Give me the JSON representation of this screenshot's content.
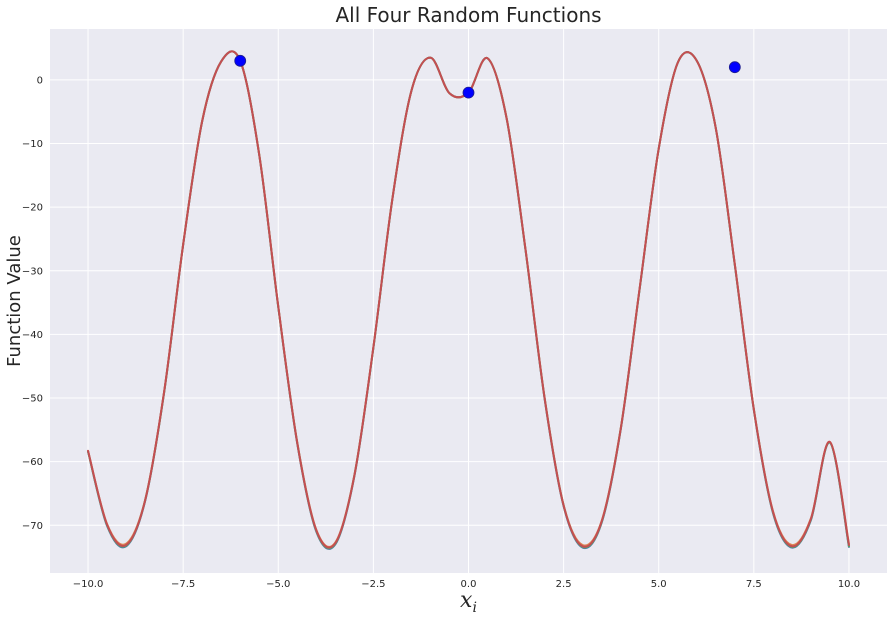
{
  "chart_data": {
    "type": "line",
    "title": "All Four Random Functions",
    "xlabel": "x",
    "xlabel_subscript": "i",
    "ylabel": "Function Value",
    "xlim": [
      -11.0,
      11.0
    ],
    "ylim": [
      -77.5,
      8.0
    ],
    "x_ticks": [
      -10.0,
      -7.5,
      -5.0,
      -2.5,
      0.0,
      2.5,
      5.0,
      7.5,
      10.0
    ],
    "x_tick_labels": [
      "−10.0",
      "−7.5",
      "−5.0",
      "−2.5",
      "0.0",
      "2.5",
      "5.0",
      "7.5",
      "10.0"
    ],
    "y_ticks": [
      -70,
      -60,
      -50,
      -40,
      -30,
      -20,
      -10,
      0
    ],
    "y_tick_labels": [
      "−70",
      "−60",
      "−50",
      "−40",
      "−30",
      "−20",
      "−10",
      "0"
    ],
    "grid": true,
    "background_color": "#eaeaf2",
    "series": [
      {
        "color": "#4c72b0",
        "x": [
          -10.0,
          -9.5,
          -9.0,
          -8.5,
          -8.0,
          -7.5,
          -7.0,
          -6.5,
          -6.0,
          -5.5,
          -5.0,
          -4.5,
          -4.0,
          -3.5,
          -3.0,
          -2.5,
          -2.0,
          -1.5,
          -1.0,
          -0.5,
          0.0,
          0.5,
          1.0,
          1.5,
          2.0,
          2.5,
          3.0,
          3.5,
          4.0,
          4.5,
          5.0,
          5.5,
          6.0,
          6.5,
          7.0,
          7.5,
          8.0,
          8.5,
          9.0,
          9.5,
          10.0
        ],
        "y": [
          -58.4,
          -70.1,
          -73.3,
          -66.2,
          -49.1,
          -25.9,
          -6.5,
          2.9,
          3.0,
          -11.8,
          -35.7,
          -57.2,
          -71.0,
          -73.0,
          -62.3,
          -42.1,
          -18.7,
          -1.7,
          3.5,
          -2.1,
          -2.0,
          3.4,
          -6.0,
          -26.8,
          -50.1,
          -67.0,
          -73.5,
          -69.6,
          -55.0,
          -32.8,
          -10.8,
          2.7,
          3.0,
          -7.6,
          -29.1,
          -51.9,
          -68.0,
          -73.5,
          -69.2,
          -57.0,
          -73.4
        ]
      },
      {
        "color": "#dd8452",
        "x": [
          -10.0,
          -9.5,
          -9.0,
          -8.5,
          -8.0,
          -7.5,
          -7.0,
          -6.5,
          -6.0,
          -5.5,
          -5.0,
          -4.5,
          -4.0,
          -3.5,
          -3.0,
          -2.5,
          -2.0,
          -1.5,
          -1.0,
          -0.5,
          0.0,
          0.5,
          1.0,
          1.5,
          2.0,
          2.5,
          3.0,
          3.5,
          4.0,
          4.5,
          5.0,
          5.5,
          6.0,
          6.5,
          7.0,
          7.5,
          8.0,
          8.5,
          9.0,
          9.5,
          10.0
        ],
        "y": [
          -58.3,
          -69.8,
          -72.9,
          -66.0,
          -49.0,
          -25.8,
          -6.4,
          2.9,
          3.0,
          -11.7,
          -35.6,
          -57.0,
          -70.7,
          -72.7,
          -62.1,
          -42.0,
          -18.6,
          -1.7,
          3.5,
          -2.1,
          -2.0,
          3.4,
          -5.9,
          -26.7,
          -49.9,
          -66.8,
          -73.1,
          -69.3,
          -54.8,
          -32.7,
          -10.8,
          2.7,
          3.0,
          -7.6,
          -29.0,
          -51.7,
          -67.7,
          -73.1,
          -68.9,
          -56.9,
          -72.9
        ]
      },
      {
        "color": "#55a868",
        "x": [
          -10.0,
          -9.5,
          -9.0,
          -8.5,
          -8.0,
          -7.5,
          -7.0,
          -6.5,
          -6.0,
          -5.5,
          -5.0,
          -4.5,
          -4.0,
          -3.5,
          -3.0,
          -2.5,
          -2.0,
          -1.5,
          -1.0,
          -0.5,
          0.0,
          0.5,
          1.0,
          1.5,
          2.0,
          2.5,
          3.0,
          3.5,
          4.0,
          4.5,
          5.0,
          5.5,
          6.0,
          6.5,
          7.0,
          7.5,
          8.0,
          8.5,
          9.0,
          9.5,
          10.0
        ],
        "y": [
          -58.4,
          -70.0,
          -73.2,
          -66.1,
          -49.1,
          -25.9,
          -6.5,
          2.9,
          3.0,
          -11.8,
          -35.7,
          -57.1,
          -70.9,
          -72.9,
          -62.2,
          -42.1,
          -18.7,
          -1.7,
          3.5,
          -2.1,
          -2.0,
          3.4,
          -6.0,
          -26.8,
          -50.0,
          -66.9,
          -73.4,
          -69.5,
          -54.9,
          -32.8,
          -10.8,
          2.7,
          3.0,
          -7.6,
          -29.1,
          -51.8,
          -67.9,
          -73.4,
          -69.1,
          -57.0,
          -73.3
        ]
      },
      {
        "color": "#c44e52",
        "x": [
          -10.0,
          -9.5,
          -9.0,
          -8.5,
          -8.0,
          -7.5,
          -7.0,
          -6.5,
          -6.0,
          -5.5,
          -5.0,
          -4.5,
          -4.0,
          -3.5,
          -3.0,
          -2.5,
          -2.0,
          -1.5,
          -1.0,
          -0.5,
          0.0,
          0.5,
          1.0,
          1.5,
          2.0,
          2.5,
          3.0,
          3.5,
          4.0,
          4.5,
          5.0,
          5.5,
          6.0,
          6.5,
          7.0,
          7.5,
          8.0,
          8.5,
          9.0,
          9.5,
          10.0
        ],
        "y": [
          -58.3,
          -69.9,
          -73.1,
          -66.1,
          -49.0,
          -25.9,
          -6.5,
          2.9,
          3.0,
          -11.8,
          -35.6,
          -57.1,
          -70.8,
          -72.8,
          -62.2,
          -42.0,
          -18.7,
          -1.7,
          3.5,
          -2.1,
          -2.0,
          3.4,
          -6.0,
          -26.7,
          -50.0,
          -66.9,
          -73.3,
          -69.4,
          -54.9,
          -32.7,
          -10.8,
          2.7,
          3.0,
          -7.6,
          -29.0,
          -51.8,
          -67.8,
          -73.3,
          -69.0,
          -56.9,
          -73.1
        ]
      }
    ],
    "points": {
      "color": "#0000ff",
      "x": [
        -6.0,
        0.0,
        7.0
      ],
      "y": [
        3.0,
        -2.0,
        2.0
      ]
    }
  }
}
